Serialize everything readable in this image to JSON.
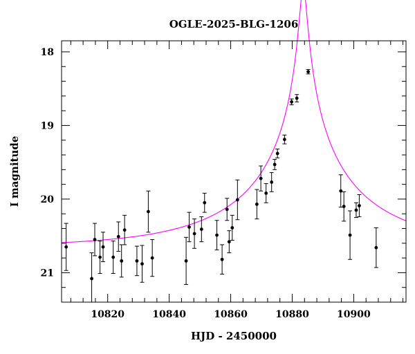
{
  "chart_data": {
    "type": "scatter",
    "title": "OGLE-2025-BLG-1206",
    "xlabel": "HJD - 2450000",
    "ylabel": "I magnitude",
    "xlim": [
      10805,
      10917
    ],
    "ylim": [
      21.4,
      17.85
    ],
    "y_inverted": true,
    "grid": false,
    "x_ticks": [
      10820,
      10840,
      10860,
      10880,
      10900
    ],
    "y_ticks": [
      18,
      19,
      20,
      21
    ],
    "x_tick_labels": [
      "10820",
      "10840",
      "10860",
      "10880",
      "10900"
    ],
    "y_tick_labels": [
      "18",
      "19",
      "20",
      "21"
    ],
    "x_minor_step": 4,
    "y_minor_step": 0.2,
    "colors": {
      "points": "#000000",
      "model": "#ff00ff"
    },
    "series": [
      {
        "kind": "points_with_errorbars",
        "x": [
          10806.5,
          10814.8,
          10815.8,
          10817.5,
          10818.5,
          10821.8,
          10823.5,
          10824.5,
          10825.5,
          10829.5,
          10831.2,
          10833.2,
          10834.5,
          10845.5,
          10846.5,
          10848.2,
          10850.5,
          10851.5,
          10855.5,
          10857.2,
          10858.8,
          10859.5,
          10860.5,
          10862.2,
          10868.5,
          10869.8,
          10871.5,
          10873.3,
          10874.3,
          10875.2,
          10877.5,
          10879.8,
          10881.5,
          10885.2,
          10895.8,
          10896.8,
          10898.8,
          10900.8,
          10901.8,
          10907.3
        ],
        "y": [
          20.65,
          21.08,
          20.55,
          20.79,
          20.65,
          20.79,
          20.51,
          20.84,
          20.42,
          20.84,
          20.88,
          20.17,
          20.8,
          20.84,
          20.38,
          20.47,
          20.41,
          20.05,
          20.49,
          20.82,
          20.14,
          20.58,
          20.39,
          20.01,
          20.07,
          19.72,
          19.92,
          19.77,
          19.53,
          19.38,
          19.19,
          18.68,
          18.63,
          18.27,
          19.89,
          20.1,
          20.49,
          20.15,
          20.09,
          20.66
        ],
        "yerr": [
          0.32,
          0.35,
          0.22,
          0.22,
          0.2,
          0.22,
          0.2,
          0.22,
          0.2,
          0.2,
          0.25,
          0.28,
          0.25,
          0.32,
          0.2,
          0.2,
          0.17,
          0.13,
          0.2,
          0.2,
          0.15,
          0.15,
          0.17,
          0.27,
          0.2,
          0.17,
          0.13,
          0.13,
          0.07,
          0.06,
          0.06,
          0.04,
          0.05,
          0.03,
          0.22,
          0.2,
          0.33,
          0.1,
          0.15,
          0.27
        ]
      },
      {
        "kind": "model_curve",
        "t0": 10883.6,
        "u0": 0.026,
        "tE": 44,
        "I_source": 21.1,
        "I_base": 20.65
      }
    ]
  }
}
